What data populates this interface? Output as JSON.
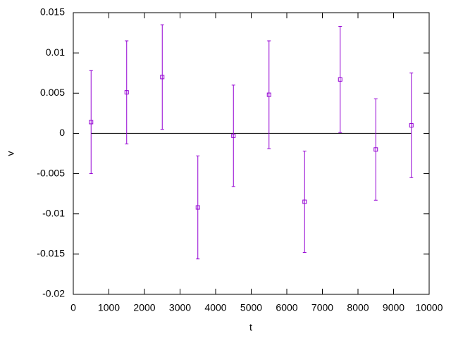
{
  "chart_data": {
    "type": "errorbar",
    "xlabel": "t",
    "ylabel": "v",
    "x": [
      500,
      1500,
      2500,
      3500,
      4500,
      5500,
      6500,
      7500,
      8500,
      9500
    ],
    "series": [
      {
        "color": "#9400d3",
        "values": [
          0.0014,
          0.0051,
          0.007,
          -0.0092,
          -0.0003,
          0.0048,
          -0.0085,
          0.0067,
          -0.002,
          0.001
        ],
        "errors": [
          0.0064,
          0.0064,
          0.0065,
          0.0064,
          0.0063,
          0.0067,
          0.0063,
          0.0066,
          0.0063,
          0.0065
        ]
      }
    ],
    "xlim": [
      0,
      10000
    ],
    "ylim": [
      -0.02,
      0.015
    ],
    "xticks": [
      0,
      1000,
      2000,
      3000,
      4000,
      5000,
      6000,
      7000,
      8000,
      9000,
      10000
    ],
    "yticks": [
      -0.02,
      -0.015,
      -0.01,
      -0.005,
      0,
      0.005,
      0.01,
      0.015
    ]
  }
}
